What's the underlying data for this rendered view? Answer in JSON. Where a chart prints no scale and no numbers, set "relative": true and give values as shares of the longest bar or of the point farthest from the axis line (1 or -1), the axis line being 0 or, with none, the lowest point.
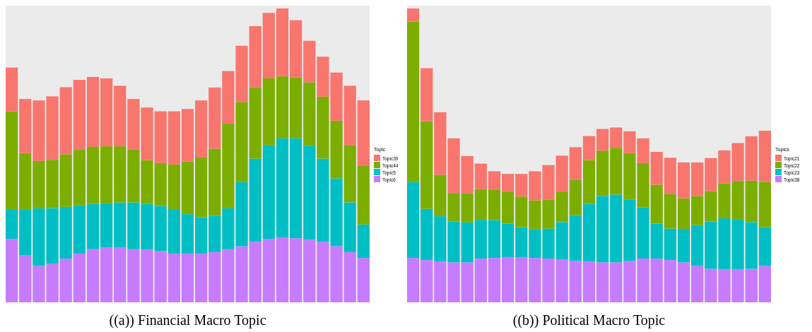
{
  "chart_data": [
    {
      "type": "bar",
      "stacked": true,
      "relative": true,
      "title": "((a)) Financial Macro Topic",
      "legend_title": "Topic",
      "legend": "right",
      "categories": [
        null,
        null,
        null,
        null,
        null,
        null,
        null,
        null,
        null,
        null,
        null,
        null,
        null,
        null,
        null,
        null,
        null,
        null,
        null,
        null,
        null,
        null,
        null,
        null,
        null,
        null,
        null
      ],
      "series": [
        {
          "name": "Topic6",
          "color": "#c77cff",
          "values": [
            0.216,
            0.161,
            0.124,
            0.132,
            0.149,
            0.166,
            0.181,
            0.186,
            0.186,
            0.181,
            0.179,
            0.174,
            0.166,
            0.166,
            0.166,
            0.171,
            0.181,
            0.191,
            0.206,
            0.216,
            0.221,
            0.218,
            0.213,
            0.206,
            0.191,
            0.171,
            0.151
          ]
        },
        {
          "name": "Topic5",
          "color": "#00bfc4",
          "values": [
            0.099,
            0.156,
            0.196,
            0.189,
            0.176,
            0.164,
            0.154,
            0.151,
            0.154,
            0.159,
            0.156,
            0.154,
            0.149,
            0.134,
            0.124,
            0.124,
            0.139,
            0.218,
            0.283,
            0.318,
            0.337,
            0.34,
            0.32,
            0.283,
            0.231,
            0.169,
            0.114
          ]
        },
        {
          "name": "Topic44",
          "color": "#7cae00",
          "values": [
            0.335,
            0.191,
            0.161,
            0.164,
            0.179,
            0.189,
            0.194,
            0.194,
            0.191,
            0.181,
            0.149,
            0.146,
            0.154,
            0.179,
            0.203,
            0.228,
            0.288,
            0.273,
            0.243,
            0.228,
            0.211,
            0.208,
            0.216,
            0.211,
            0.196,
            0.194,
            0.199
          ]
        },
        {
          "name": "Topic39",
          "color": "#f8766d",
          "values": [
            0.149,
            0.184,
            0.206,
            0.216,
            0.228,
            0.238,
            0.238,
            0.231,
            0.206,
            0.171,
            0.179,
            0.176,
            0.181,
            0.179,
            0.194,
            0.208,
            0.179,
            0.191,
            0.208,
            0.223,
            0.231,
            0.194,
            0.141,
            0.136,
            0.164,
            0.203,
            0.223
          ]
        }
      ]
    },
    {
      "type": "bar",
      "stacked": true,
      "relative": true,
      "title": "((b)) Political Macro Topic",
      "legend_title": "Topics",
      "legend": "right",
      "categories": [
        null,
        null,
        null,
        null,
        null,
        null,
        null,
        null,
        null,
        null,
        null,
        null,
        null,
        null,
        null,
        null,
        null,
        null,
        null,
        null,
        null,
        null,
        null,
        null,
        null,
        null,
        null
      ],
      "series": [
        {
          "name": "Topic38",
          "color": "#c77cff",
          "values": [
            0.151,
            0.144,
            0.139,
            0.136,
            0.136,
            0.149,
            0.151,
            0.154,
            0.154,
            0.151,
            0.149,
            0.146,
            0.141,
            0.139,
            0.136,
            0.136,
            0.141,
            0.149,
            0.149,
            0.144,
            0.136,
            0.124,
            0.114,
            0.112,
            0.112,
            0.114,
            0.124
          ]
        },
        {
          "name": "Topic23",
          "color": "#00bfc4",
          "values": [
            0.258,
            0.174,
            0.154,
            0.139,
            0.136,
            0.132,
            0.129,
            0.114,
            0.102,
            0.097,
            0.102,
            0.127,
            0.156,
            0.196,
            0.226,
            0.231,
            0.208,
            0.174,
            0.119,
            0.107,
            0.114,
            0.139,
            0.161,
            0.174,
            0.169,
            0.159,
            0.132
          ]
        },
        {
          "name": "Topic22",
          "color": "#7cae00",
          "values": [
            0.546,
            0.298,
            0.141,
            0.097,
            0.099,
            0.104,
            0.104,
            0.107,
            0.104,
            0.099,
            0.099,
            0.102,
            0.119,
            0.149,
            0.154,
            0.159,
            0.159,
            0.151,
            0.132,
            0.117,
            0.104,
            0.099,
            0.104,
            0.119,
            0.132,
            0.141,
            0.154
          ]
        },
        {
          "name": "Topic21",
          "color": "#f8766d",
          "values": [
            0.045,
            0.181,
            0.213,
            0.186,
            0.127,
            0.087,
            0.062,
            0.062,
            0.077,
            0.099,
            0.117,
            0.124,
            0.112,
            0.082,
            0.074,
            0.069,
            0.074,
            0.084,
            0.112,
            0.124,
            0.122,
            0.114,
            0.112,
            0.112,
            0.129,
            0.151,
            0.174
          ]
        }
      ]
    }
  ]
}
